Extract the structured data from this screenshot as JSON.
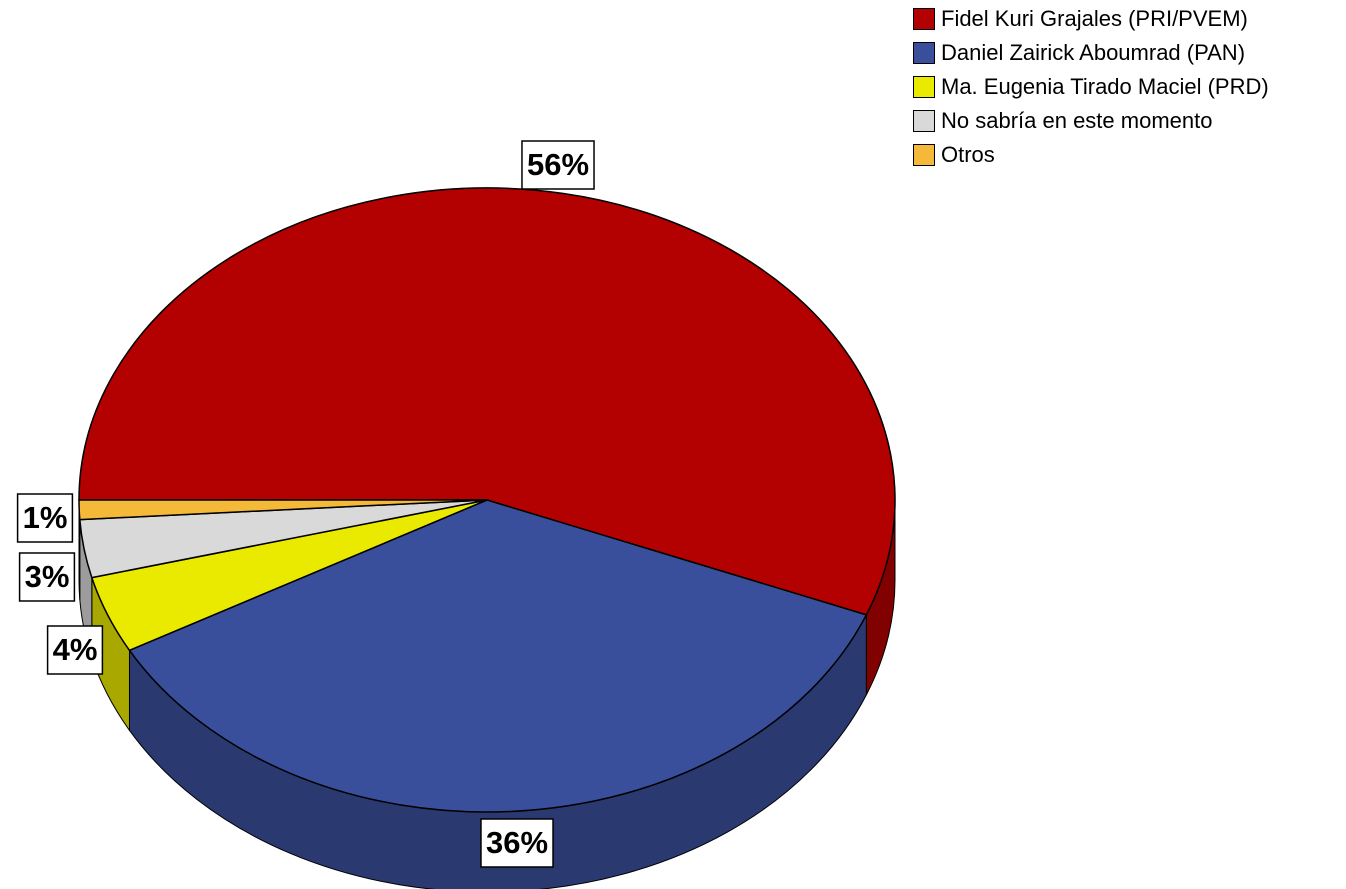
{
  "chart_data": {
    "type": "pie",
    "categories": [
      "Fidel Kuri Grajales (PRI/PVEM)",
      "Daniel Zairick Aboumrad (PAN)",
      "Ma. Eugenia Tirado Maciel (PRD)",
      "No sabría en este momento",
      "Otros"
    ],
    "values": [
      56,
      36,
      4,
      3,
      1
    ],
    "value_labels": [
      "56%",
      "36%",
      "4%",
      "3%",
      "1%"
    ],
    "colors": [
      "#b30000",
      "#3a4f9c",
      "#eaea00",
      "#d9d9d9",
      "#f5b93a"
    ],
    "legend": "top-right"
  }
}
